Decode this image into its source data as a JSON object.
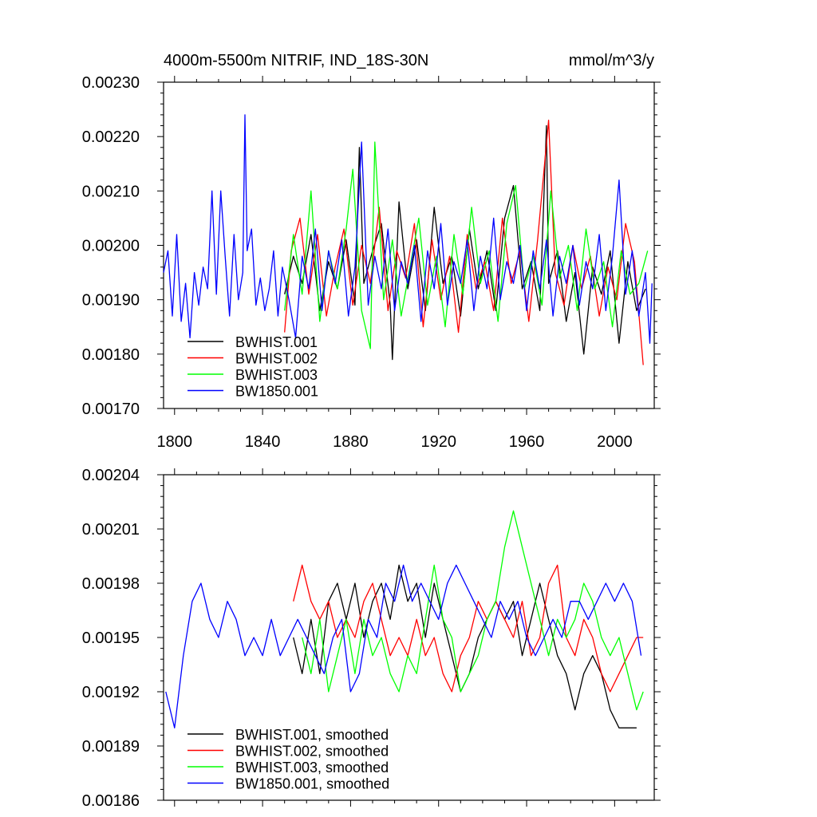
{
  "chart_data": [
    {
      "type": "line",
      "title": "4000m-5500m NITRIF, IND_18S-30N",
      "units": "mmol/m^3/y",
      "xlabel": "",
      "ylabel": "",
      "xlim": [
        1795,
        2018
      ],
      "ylim": [
        0.0017,
        0.0023
      ],
      "xticks": [
        1800,
        1840,
        1880,
        1920,
        1960,
        2000
      ],
      "xtick_labels": [
        "1800",
        "1840",
        "1880",
        "1920",
        "1960",
        "2000"
      ],
      "yticks": [
        0.0017,
        0.0018,
        0.0019,
        0.002,
        0.0021,
        0.0022,
        0.0023
      ],
      "ytick_labels": [
        "0.00170",
        "0.00180",
        "0.00190",
        "0.00200",
        "0.00210",
        "0.00220",
        "0.00230"
      ],
      "legend_position": "bottom-left",
      "series": [
        {
          "name": "BWHIST.001",
          "color": "#000000",
          "x": [
            1850,
            1854,
            1858,
            1862,
            1866,
            1870,
            1874,
            1878,
            1882,
            1884,
            1886,
            1890,
            1894,
            1898,
            1899,
            1902,
            1906,
            1910,
            1914,
            1918,
            1922,
            1926,
            1930,
            1934,
            1938,
            1942,
            1946,
            1950,
            1954,
            1958,
            1962,
            1966,
            1969,
            1970,
            1974,
            1978,
            1982,
            1986,
            1990,
            1994,
            1998,
            2002,
            2006,
            2010,
            2014
          ],
          "values": [
            0.00191,
            0.00198,
            0.00193,
            0.00202,
            0.00188,
            0.00197,
            0.00192,
            0.00201,
            0.00189,
            0.00218,
            0.00193,
            0.00199,
            0.00204,
            0.00189,
            0.00179,
            0.00208,
            0.00192,
            0.00201,
            0.00188,
            0.00207,
            0.00193,
            0.00198,
            0.00187,
            0.00203,
            0.00192,
            0.00199,
            0.00188,
            0.00205,
            0.00211,
            0.00192,
            0.00197,
            0.00188,
            0.00222,
            0.00193,
            0.00199,
            0.00186,
            0.00195,
            0.0018,
            0.00196,
            0.00191,
            0.00199,
            0.00182,
            0.00197,
            0.00188,
            0.00192
          ]
        },
        {
          "name": "BWHIST.002",
          "color": "#ff0000",
          "x": [
            1850,
            1853,
            1857,
            1861,
            1865,
            1869,
            1873,
            1877,
            1881,
            1885,
            1889,
            1893,
            1897,
            1901,
            1905,
            1909,
            1913,
            1917,
            1921,
            1925,
            1929,
            1933,
            1937,
            1941,
            1945,
            1949,
            1953,
            1957,
            1961,
            1965,
            1970,
            1973,
            1977,
            1981,
            1985,
            1989,
            1993,
            1997,
            2001,
            2005,
            2009,
            2013
          ],
          "values": [
            0.00184,
            0.00199,
            0.00205,
            0.00191,
            0.00202,
            0.00187,
            0.00196,
            0.00203,
            0.00189,
            0.002,
            0.00193,
            0.00207,
            0.00188,
            0.00199,
            0.00194,
            0.00204,
            0.00185,
            0.00201,
            0.0019,
            0.00198,
            0.00184,
            0.00202,
            0.00192,
            0.00197,
            0.00188,
            0.00205,
            0.00193,
            0.00199,
            0.00186,
            0.00201,
            0.00223,
            0.00195,
            0.00189,
            0.002,
            0.00192,
            0.00198,
            0.00187,
            0.00196,
            0.0019,
            0.00204,
            0.00197,
            0.00178
          ]
        },
        {
          "name": "BWHIST.003",
          "color": "#00ff00",
          "x": [
            1850,
            1854,
            1858,
            1862,
            1866,
            1870,
            1874,
            1878,
            1881,
            1885,
            1889,
            1891,
            1895,
            1899,
            1903,
            1907,
            1911,
            1915,
            1919,
            1923,
            1927,
            1931,
            1935,
            1939,
            1943,
            1947,
            1951,
            1955,
            1959,
            1963,
            1967,
            1971,
            1975,
            1979,
            1983,
            1987,
            1991,
            1995,
            1999,
            2003,
            2007,
            2011,
            2015
          ],
          "values": [
            0.00188,
            0.00202,
            0.00191,
            0.0021,
            0.00186,
            0.00199,
            0.00192,
            0.00203,
            0.00214,
            0.00188,
            0.00181,
            0.00219,
            0.0019,
            0.00201,
            0.00187,
            0.00196,
            0.00205,
            0.00189,
            0.00198,
            0.00185,
            0.00202,
            0.00191,
            0.00207,
            0.00193,
            0.00199,
            0.00186,
            0.00204,
            0.00211,
            0.00192,
            0.00198,
            0.00189,
            0.0021,
            0.00194,
            0.002,
            0.00188,
            0.00203,
            0.00192,
            0.00197,
            0.00185,
            0.00199,
            0.00191,
            0.00193,
            0.00199
          ]
        },
        {
          "name": "BW1850.001",
          "color": "#0000ff",
          "x": [
            1795,
            1797,
            1799,
            1801,
            1803,
            1805,
            1807,
            1809,
            1811,
            1813,
            1815,
            1817,
            1819,
            1821,
            1823,
            1825,
            1827,
            1829,
            1831,
            1832,
            1833,
            1835,
            1837,
            1839,
            1841,
            1843,
            1845,
            1847,
            1849,
            1852,
            1855,
            1858,
            1861,
            1864,
            1867,
            1870,
            1873,
            1876,
            1879,
            1882,
            1885,
            1888,
            1891,
            1894,
            1897,
            1900,
            1903,
            1906,
            1909,
            1912,
            1915,
            1918,
            1921,
            1924,
            1927,
            1930,
            1933,
            1936,
            1939,
            1942,
            1945,
            1948,
            1951,
            1954,
            1957,
            1960,
            1963,
            1966,
            1969,
            1972,
            1975,
            1978,
            1981,
            1984,
            1987,
            1990,
            1993,
            1996,
            1999,
            2002,
            2005,
            2008,
            2011,
            2014,
            2016,
            2017
          ],
          "values": [
            0.00195,
            0.00199,
            0.00187,
            0.00202,
            0.00186,
            0.00193,
            0.00183,
            0.00195,
            0.00189,
            0.00196,
            0.00192,
            0.0021,
            0.00191,
            0.0021,
            0.00198,
            0.00187,
            0.00202,
            0.0019,
            0.00195,
            0.00224,
            0.00199,
            0.00203,
            0.00189,
            0.00194,
            0.00188,
            0.00192,
            0.00199,
            0.00187,
            0.00196,
            0.0019,
            0.00183,
            0.00198,
            0.00192,
            0.00203,
            0.00188,
            0.00199,
            0.00193,
            0.00201,
            0.00187,
            0.00196,
            0.00219,
            0.00189,
            0.00198,
            0.00192,
            0.00203,
            0.00188,
            0.00197,
            0.00193,
            0.002,
            0.00186,
            0.00199,
            0.00192,
            0.00204,
            0.00189,
            0.00197,
            0.00193,
            0.00201,
            0.00188,
            0.00198,
            0.00192,
            0.00205,
            0.0019,
            0.00197,
            0.00193,
            0.002,
            0.00188,
            0.00199,
            0.00192,
            0.00201,
            0.00187,
            0.00198,
            0.00193,
            0.002,
            0.00189,
            0.00197,
            0.00192,
            0.00202,
            0.00188,
            0.00198,
            0.00212,
            0.00191,
            0.00199,
            0.00187,
            0.00195,
            0.00182,
            0.00193
          ]
        }
      ]
    },
    {
      "type": "line",
      "title": "",
      "xlabel": "",
      "ylabel": "",
      "xlim": [
        1795,
        2018
      ],
      "ylim": [
        0.00186,
        0.00204
      ],
      "xticks": [
        1800,
        1840,
        1880,
        1920,
        1960,
        2000
      ],
      "yticks": [
        0.00186,
        0.00189,
        0.00192,
        0.00195,
        0.00198,
        0.00201,
        0.00204
      ],
      "ytick_labels": [
        "0.00186",
        "0.00189",
        "0.00192",
        "0.00195",
        "0.00198",
        "0.00201",
        "0.00204"
      ],
      "legend_position": "bottom-left",
      "series": [
        {
          "name": "BWHIST.001, smoothed",
          "color": "#000000",
          "x": [
            1854,
            1858,
            1862,
            1866,
            1870,
            1874,
            1878,
            1882,
            1886,
            1890,
            1894,
            1898,
            1902,
            1906,
            1910,
            1914,
            1918,
            1922,
            1926,
            1930,
            1934,
            1938,
            1942,
            1946,
            1950,
            1954,
            1958,
            1962,
            1966,
            1970,
            1974,
            1978,
            1982,
            1986,
            1990,
            1994,
            1998,
            2002,
            2006,
            2010
          ],
          "values": [
            0.00195,
            0.00193,
            0.00196,
            0.00193,
            0.00197,
            0.00198,
            0.00196,
            0.00198,
            0.00195,
            0.00197,
            0.00198,
            0.00196,
            0.00199,
            0.00197,
            0.00198,
            0.00195,
            0.00198,
            0.00196,
            0.00194,
            0.00192,
            0.00193,
            0.00195,
            0.00196,
            0.00197,
            0.00196,
            0.00197,
            0.00194,
            0.00196,
            0.00198,
            0.00196,
            0.00194,
            0.00193,
            0.00191,
            0.00193,
            0.00194,
            0.00193,
            0.00191,
            0.0019,
            0.0019,
            0.0019
          ]
        },
        {
          "name": "BWHIST.002, smoothed",
          "color": "#ff0000",
          "x": [
            1854,
            1858,
            1862,
            1866,
            1870,
            1874,
            1878,
            1882,
            1886,
            1890,
            1894,
            1898,
            1902,
            1906,
            1910,
            1914,
            1918,
            1922,
            1926,
            1930,
            1934,
            1938,
            1942,
            1946,
            1950,
            1954,
            1958,
            1962,
            1966,
            1970,
            1974,
            1978,
            1982,
            1986,
            1990,
            1994,
            1998,
            2002,
            2006,
            2010,
            2013
          ],
          "values": [
            0.00197,
            0.00199,
            0.00197,
            0.00196,
            0.00197,
            0.00195,
            0.00196,
            0.00195,
            0.00197,
            0.00198,
            0.00196,
            0.00194,
            0.00195,
            0.00194,
            0.00196,
            0.00194,
            0.00195,
            0.00193,
            0.00192,
            0.00194,
            0.00195,
            0.00197,
            0.00196,
            0.00197,
            0.00196,
            0.00195,
            0.00197,
            0.00194,
            0.00195,
            0.00198,
            0.00199,
            0.00195,
            0.00194,
            0.00196,
            0.00195,
            0.00193,
            0.00192,
            0.00193,
            0.00194,
            0.00195,
            0.00195
          ]
        },
        {
          "name": "BWHIST.003, smoothed",
          "color": "#00ff00",
          "x": [
            1858,
            1862,
            1866,
            1870,
            1874,
            1878,
            1882,
            1886,
            1890,
            1894,
            1898,
            1902,
            1906,
            1910,
            1914,
            1918,
            1922,
            1926,
            1930,
            1934,
            1938,
            1942,
            1946,
            1950,
            1954,
            1958,
            1962,
            1966,
            1970,
            1974,
            1978,
            1982,
            1986,
            1990,
            1994,
            1998,
            2002,
            2006,
            2010,
            2013
          ],
          "values": [
            0.00195,
            0.00193,
            0.00196,
            0.00192,
            0.00194,
            0.00196,
            0.00193,
            0.00196,
            0.00194,
            0.00195,
            0.00193,
            0.00192,
            0.00194,
            0.00193,
            0.00196,
            0.00199,
            0.00196,
            0.00195,
            0.00192,
            0.00193,
            0.00194,
            0.00196,
            0.00197,
            0.002,
            0.00202,
            0.002,
            0.00198,
            0.00196,
            0.00194,
            0.00196,
            0.00195,
            0.00196,
            0.00198,
            0.00197,
            0.00195,
            0.00194,
            0.00195,
            0.00193,
            0.00191,
            0.00192
          ]
        },
        {
          "name": "BW1850.001, smoothed",
          "color": "#0000ff",
          "x": [
            1796,
            1800,
            1804,
            1808,
            1812,
            1816,
            1820,
            1824,
            1828,
            1832,
            1836,
            1840,
            1844,
            1848,
            1852,
            1856,
            1860,
            1864,
            1868,
            1872,
            1876,
            1880,
            1884,
            1888,
            1892,
            1896,
            1900,
            1904,
            1908,
            1912,
            1916,
            1920,
            1924,
            1928,
            1932,
            1936,
            1940,
            1944,
            1948,
            1952,
            1956,
            1960,
            1964,
            1968,
            1972,
            1976,
            1980,
            1984,
            1988,
            1992,
            1996,
            2000,
            2004,
            2008,
            2012
          ],
          "values": [
            0.00192,
            0.0019,
            0.00194,
            0.00197,
            0.00198,
            0.00196,
            0.00195,
            0.00197,
            0.00196,
            0.00194,
            0.00195,
            0.00194,
            0.00196,
            0.00194,
            0.00195,
            0.00196,
            0.00195,
            0.00194,
            0.00193,
            0.00195,
            0.00196,
            0.00192,
            0.00193,
            0.00196,
            0.00195,
            0.00198,
            0.00197,
            0.00199,
            0.00197,
            0.00198,
            0.00197,
            0.00196,
            0.00198,
            0.00199,
            0.00198,
            0.00197,
            0.00196,
            0.00195,
            0.00197,
            0.00196,
            0.00197,
            0.00195,
            0.00194,
            0.00195,
            0.00196,
            0.00195,
            0.00197,
            0.00197,
            0.00196,
            0.00197,
            0.00198,
            0.00197,
            0.00198,
            0.00197,
            0.00194
          ]
        }
      ]
    }
  ]
}
